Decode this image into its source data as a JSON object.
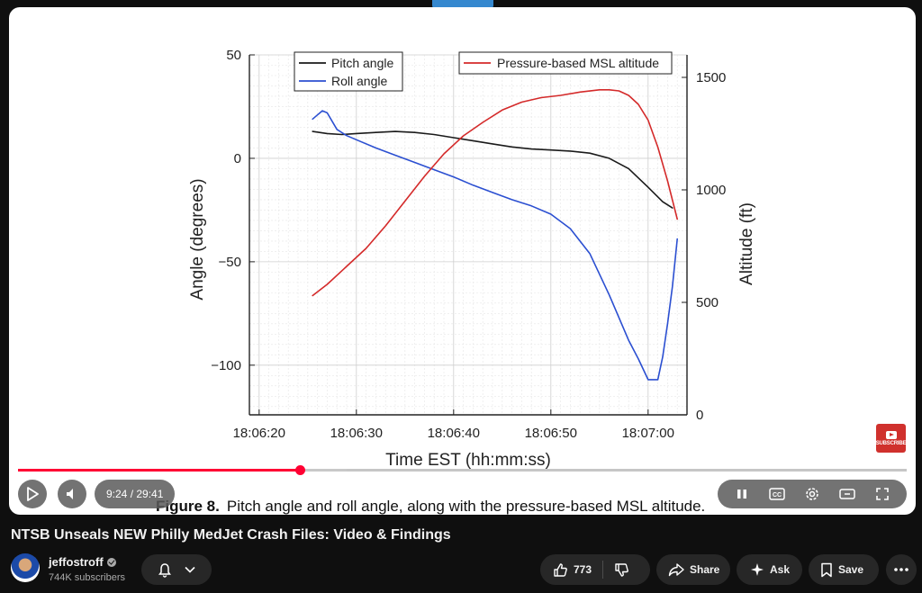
{
  "player": {
    "time_current": "9:24",
    "time_total": "29:41",
    "progress_fraction": 0.317,
    "buffer_fraction": 0.37,
    "caption_label": "Figure 8.",
    "caption_text": "Pitch angle and roll angle, along with the pressure-based MSL altitude.",
    "subscribe_badge": "SUBSCRIBE"
  },
  "video": {
    "title": "NTSB Unseals NEW Philly MedJet Crash Files: Video & Findings",
    "channel": "jeffostroff",
    "subscribers": "744K subscribers",
    "like_count": "773",
    "share_label": "Share",
    "ask_label": "Ask",
    "save_label": "Save"
  },
  "colors": {
    "accent": "#ff0033",
    "pitch": "#1a1a1a",
    "roll": "#2b4fd1",
    "altitude": "#d42a2a"
  },
  "icons": [
    "play-icon",
    "volume-icon",
    "pause-icon",
    "cc-icon",
    "settings-icon",
    "theater-icon",
    "fullscreen-icon",
    "bell-icon",
    "chevron-down-icon",
    "thumb-up-icon",
    "thumb-down-icon",
    "share-icon",
    "sparkle-icon",
    "bookmark-icon",
    "more-icon"
  ],
  "chart_data": {
    "type": "line",
    "xlabel": "Time EST (hh:mm:ss)",
    "ylabel": "Angle (degrees)",
    "y2label": "Altitude (ft)",
    "x_ticks": [
      "18:06:20",
      "18:06:30",
      "18:06:40",
      "18:06:50",
      "18:07:00"
    ],
    "y_ticks": [
      "50",
      "0",
      "−50",
      "−100"
    ],
    "y2_ticks": [
      "1500",
      "1000",
      "500",
      "0"
    ],
    "xlim": [
      19,
      64
    ],
    "ylim": [
      -124,
      50
    ],
    "y2lim": [
      0,
      1600
    ],
    "grid": true,
    "legend_left": [
      "Pitch angle",
      "Roll angle"
    ],
    "legend_right": [
      "Pressure-based MSL altitude"
    ],
    "x_unit": "seconds after 18:06:00",
    "series": [
      {
        "name": "Pitch angle",
        "axis": "left",
        "x": [
          25.5,
          27,
          28.5,
          30,
          32,
          34,
          36,
          38,
          40,
          42,
          44,
          46,
          48,
          50,
          52,
          54,
          56,
          58,
          60,
          61.5,
          62.5
        ],
        "y": [
          13,
          12,
          11.5,
          12,
          12.5,
          13,
          12.5,
          11.5,
          10,
          8.5,
          7,
          5.5,
          4.5,
          4,
          3.5,
          2.5,
          0,
          -5,
          -14,
          -21,
          -24
        ]
      },
      {
        "name": "Roll angle",
        "axis": "left",
        "x": [
          25.5,
          26,
          26.5,
          27,
          28,
          29,
          30,
          32,
          34,
          36,
          38,
          40,
          42,
          44,
          46,
          48,
          50,
          52,
          54,
          56,
          58,
          59,
          60,
          60.5,
          61,
          61.5,
          62,
          62.5,
          63
        ],
        "y": [
          19,
          21,
          23,
          22,
          14,
          11,
          9,
          5,
          1.5,
          -2,
          -5.5,
          -9,
          -13,
          -16.5,
          -20,
          -23,
          -27,
          -34,
          -46,
          -66,
          -88,
          -97,
          -107,
          -107,
          -107,
          -96,
          -80,
          -62,
          -39
        ]
      },
      {
        "name": "Pressure-based MSL altitude",
        "axis": "right",
        "x": [
          25.5,
          27,
          29,
          31,
          33,
          35,
          37,
          39,
          41,
          43,
          45,
          47,
          49,
          51,
          53,
          55,
          56,
          57,
          58,
          59,
          60,
          61,
          62,
          63
        ],
        "y": [
          530,
          580,
          660,
          740,
          840,
          950,
          1060,
          1160,
          1240,
          1300,
          1355,
          1390,
          1410,
          1420,
          1435,
          1445,
          1445,
          1440,
          1420,
          1380,
          1310,
          1190,
          1040,
          870
        ]
      }
    ]
  }
}
